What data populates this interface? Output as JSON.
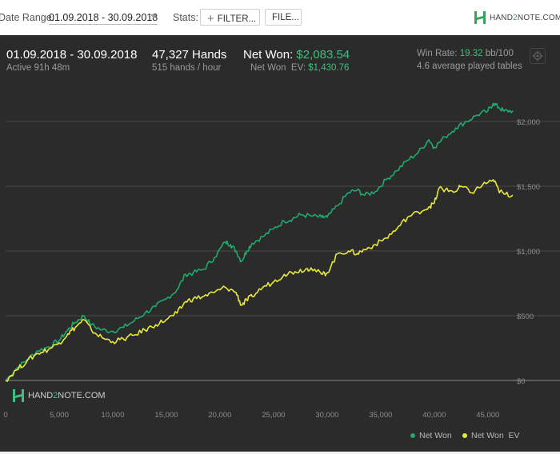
{
  "toolbar": {
    "date_range_label": "Date Range:",
    "date_range_value": "01.09.2018 - 30.09.2018",
    "stats_label": "Stats:",
    "filter_button": "FILTER...",
    "file_button": "FILE...",
    "logo_text_a": "HAND",
    "logo_text_b": "2",
    "logo_text_c": "NOTE.COM"
  },
  "summary": {
    "period": "01.09.2018 - 30.09.2018",
    "active": "Active 91h 48m",
    "hands": "47,327 Hands",
    "hands_per_hour": "515 hands / hour",
    "net_won_label": "Net Won:",
    "net_won_value": "$2,083.54",
    "net_won_ev_label": "Net Won  EV:",
    "net_won_ev_value": "$1,430.76",
    "win_rate_label": "Win Rate:",
    "win_rate_value": "19.32",
    "win_rate_unit": "bb/100",
    "avg_tables": "4.6 average played tables"
  },
  "chart_logo": {
    "text_a": "HAND",
    "text_b": "2",
    "text_c": "NOTE.COM"
  },
  "colors": {
    "net_won": "#1faa6e",
    "net_won_ev": "#e8e83a",
    "accent_green": "#3fbf7f",
    "panel_bg": "#2b2b2b"
  },
  "chart_data": {
    "type": "line",
    "xlabel": "",
    "ylabel": "",
    "xlim": [
      0,
      47327
    ],
    "ylim": [
      0,
      2200
    ],
    "x_ticks": [
      0,
      5000,
      10000,
      15000,
      20000,
      25000,
      30000,
      35000,
      40000,
      45000
    ],
    "x_tick_labels": [
      "0",
      "5,000",
      "10,000",
      "15,000",
      "20,000",
      "25,000",
      "30,000",
      "35,000",
      "40,000",
      "45,000"
    ],
    "y_ticks": [
      0,
      500,
      1000,
      1500,
      2000
    ],
    "y_tick_labels": [
      "$0",
      "$500",
      "$1,000",
      "$1,500",
      "$2,000"
    ],
    "grid": "horizontal",
    "legend_position": "bottom-right",
    "series": [
      {
        "name": "Net Won",
        "points": [
          [
            0,
            0
          ],
          [
            1000,
            90
          ],
          [
            2000,
            160
          ],
          [
            3000,
            230
          ],
          [
            4000,
            260
          ],
          [
            5000,
            310
          ],
          [
            5800,
            390
          ],
          [
            6500,
            450
          ],
          [
            7300,
            500
          ],
          [
            8000,
            430
          ],
          [
            9000,
            390
          ],
          [
            10000,
            380
          ],
          [
            11000,
            410
          ],
          [
            12000,
            460
          ],
          [
            13000,
            520
          ],
          [
            14000,
            570
          ],
          [
            15000,
            630
          ],
          [
            16000,
            700
          ],
          [
            16800,
            820
          ],
          [
            17500,
            830
          ],
          [
            18500,
            860
          ],
          [
            19500,
            950
          ],
          [
            20500,
            1070
          ],
          [
            21000,
            1050
          ],
          [
            21500,
            1000
          ],
          [
            22000,
            920
          ],
          [
            22500,
            1000
          ],
          [
            23000,
            1060
          ],
          [
            24000,
            1110
          ],
          [
            25000,
            1170
          ],
          [
            26000,
            1230
          ],
          [
            26800,
            1250
          ],
          [
            27500,
            1280
          ],
          [
            28500,
            1270
          ],
          [
            29500,
            1260
          ],
          [
            30000,
            1260
          ],
          [
            31000,
            1350
          ],
          [
            32000,
            1450
          ],
          [
            32800,
            1470
          ],
          [
            33500,
            1430
          ],
          [
            34500,
            1460
          ],
          [
            35500,
            1550
          ],
          [
            36500,
            1620
          ],
          [
            37500,
            1700
          ],
          [
            38500,
            1760
          ],
          [
            39500,
            1860
          ],
          [
            40000,
            1800
          ],
          [
            41000,
            1880
          ],
          [
            42000,
            1950
          ],
          [
            43000,
            2000
          ],
          [
            44000,
            2050
          ],
          [
            45000,
            2080
          ],
          [
            45500,
            2140
          ],
          [
            46000,
            2110
          ],
          [
            46500,
            2080
          ],
          [
            47327,
            2083.54
          ]
        ]
      },
      {
        "name": "Net Won  EV",
        "points": [
          [
            0,
            0
          ],
          [
            1000,
            80
          ],
          [
            2000,
            150
          ],
          [
            3000,
            210
          ],
          [
            4000,
            240
          ],
          [
            5000,
            290
          ],
          [
            5800,
            360
          ],
          [
            6500,
            410
          ],
          [
            7300,
            470
          ],
          [
            8000,
            390
          ],
          [
            9000,
            330
          ],
          [
            10000,
            300
          ],
          [
            11000,
            320
          ],
          [
            12000,
            350
          ],
          [
            13000,
            390
          ],
          [
            14000,
            430
          ],
          [
            15000,
            470
          ],
          [
            16000,
            520
          ],
          [
            16800,
            610
          ],
          [
            17500,
            630
          ],
          [
            18500,
            650
          ],
          [
            19500,
            680
          ],
          [
            20500,
            720
          ],
          [
            21500,
            680
          ],
          [
            22000,
            580
          ],
          [
            22500,
            620
          ],
          [
            23000,
            650
          ],
          [
            24000,
            720
          ],
          [
            25000,
            760
          ],
          [
            26000,
            820
          ],
          [
            27000,
            840
          ],
          [
            28000,
            860
          ],
          [
            28500,
            870
          ],
          [
            29500,
            820
          ],
          [
            30000,
            830
          ],
          [
            31000,
            980
          ],
          [
            32000,
            1000
          ],
          [
            32800,
            980
          ],
          [
            33500,
            1010
          ],
          [
            34500,
            1050
          ],
          [
            35500,
            1100
          ],
          [
            36500,
            1170
          ],
          [
            37500,
            1260
          ],
          [
            38500,
            1300
          ],
          [
            39500,
            1340
          ],
          [
            40000,
            1370
          ],
          [
            40500,
            1490
          ],
          [
            41000,
            1470
          ],
          [
            42000,
            1460
          ],
          [
            42500,
            1500
          ],
          [
            43500,
            1450
          ],
          [
            44500,
            1510
          ],
          [
            45500,
            1550
          ],
          [
            46000,
            1470
          ],
          [
            46500,
            1440
          ],
          [
            47327,
            1430.76
          ]
        ]
      }
    ]
  }
}
